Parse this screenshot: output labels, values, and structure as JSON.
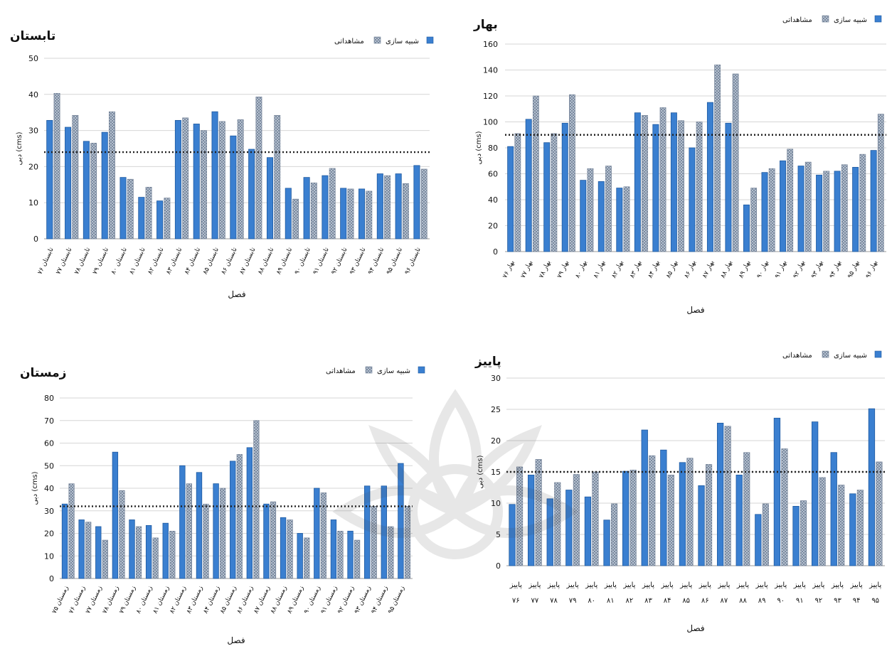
{
  "colors": {
    "simulated": "#3a7fd0",
    "simulated_edge": "#1f5aa0",
    "observed": "#aab8cc",
    "observed_edge": "#6d7c92",
    "grid": "#d6d6d6",
    "mean_line": "#222222",
    "text": "#111111"
  },
  "chart_data": [
    {
      "id": "summer",
      "type": "bar",
      "title": "تابستان",
      "xlabel": "فصل",
      "ylabel": "دبی (cms)",
      "ylim": [
        0,
        50
      ],
      "yticks": [
        0,
        10,
        20,
        30,
        40,
        50
      ],
      "grid": true,
      "legend_position": "top-right",
      "legend": [
        "مشاهداتی",
        "شبیه سازی"
      ],
      "mean_line": 24,
      "categories": [
        "تابستان ۷۶",
        "تابستان ۷۷",
        "تابستان ۷۸",
        "تابستان ۷۹",
        "تابستان ۸۰",
        "تابستان ۸۱",
        "تابستان ۸۲",
        "تابستان ۸۳",
        "تابستان ۸۴",
        "تابستان ۸۵",
        "تابستان ۸۶",
        "تابستان ۸۷",
        "تابستان ۸۸",
        "تابستان ۸۹",
        "تابستان ۹۰",
        "تابستان ۹۱",
        "تابستان ۹۲",
        "تابستان ۹۳",
        "تابستان ۹۴",
        "تابستان ۹۵",
        "تابستان ۹۶"
      ],
      "series": [
        {
          "name": "شبیه سازی",
          "values": [
            32.8,
            30.9,
            27.0,
            29.5,
            17.0,
            11.5,
            10.5,
            32.8,
            31.8,
            35.2,
            28.5,
            24.8,
            22.5,
            14.0,
            17.0,
            17.5,
            14.0,
            13.8,
            18.0,
            18.0,
            20.3
          ]
        },
        {
          "name": "مشاهداتی",
          "values": [
            40.3,
            34.2,
            26.5,
            35.2,
            16.5,
            14.3,
            11.3,
            33.5,
            30.0,
            32.5,
            33.0,
            39.3,
            34.2,
            11.0,
            15.5,
            19.5,
            13.8,
            13.2,
            17.5,
            15.3,
            19.3
          ]
        }
      ]
    },
    {
      "id": "spring",
      "type": "bar",
      "title": "بهار",
      "xlabel": "فصل",
      "ylabel": "دبی (cms)",
      "ylim": [
        0,
        160
      ],
      "yticks": [
        0,
        20,
        40,
        60,
        80,
        100,
        120,
        140,
        160
      ],
      "grid": true,
      "legend_position": "top-right",
      "legend": [
        "مشاهداتی",
        "شبیه سازی"
      ],
      "mean_line": 90,
      "categories": [
        "بهار ۷۶",
        "بهار ۷۷",
        "بهار ۷۸",
        "بهار ۷۹",
        "بهار ۸۰",
        "بهار ۸۱",
        "بهار ۸۲",
        "بهار ۸۳",
        "بهار ۸۴",
        "بهار ۸۵",
        "بهار ۸۶",
        "بهار ۸۷",
        "بهار ۸۸",
        "بهار ۸۹",
        "بهار ۹۰",
        "بهار ۹۱",
        "بهار ۹۲",
        "بهار ۹۳",
        "بهار ۹۴",
        "بهار ۹۵",
        "بهار ۹۶"
      ],
      "series": [
        {
          "name": "شبیه سازی",
          "values": [
            81,
            102,
            84,
            99,
            55,
            54,
            49,
            107,
            98,
            107,
            80,
            115,
            99,
            36,
            61,
            70,
            66,
            59,
            62,
            65,
            78
          ]
        },
        {
          "name": "مشاهداتی",
          "values": [
            91,
            120,
            91,
            121,
            64,
            66,
            50,
            105,
            111,
            101,
            100,
            144,
            137,
            49,
            64,
            79,
            69,
            62,
            67,
            75,
            106
          ]
        }
      ]
    },
    {
      "id": "winter",
      "type": "bar",
      "title": "زمستان",
      "xlabel": "فصل",
      "ylabel": "دبی (cms)",
      "ylim": [
        0,
        80
      ],
      "yticks": [
        0,
        10,
        20,
        30,
        40,
        50,
        60,
        70,
        80
      ],
      "grid": true,
      "legend_position": "top-right",
      "legend": [
        "مشاهداتی",
        "شبیه سازی"
      ],
      "mean_line": 32,
      "categories": [
        "زمستان ۷۵",
        "زمستان ۷۶",
        "زمستان ۷۷",
        "زمستان ۷۸",
        "زمستان ۷۹",
        "زمستان ۸۰",
        "زمستان ۸۱",
        "زمستان ۸۲",
        "زمستان ۸۳",
        "زمستان ۸۴",
        "زمستان ۸۵",
        "زمستان ۸۶",
        "زمستان ۸۷",
        "زمستان ۸۸",
        "زمستان ۸۹",
        "زمستان ۹۰",
        "زمستان ۹۱",
        "زمستان ۹۲",
        "زمستان ۹۳",
        "زمستان ۹۴",
        "زمستان ۹۵"
      ],
      "series": [
        {
          "name": "شبیه سازی",
          "values": [
            33,
            26,
            23,
            56,
            26,
            23.5,
            24.5,
            50,
            47,
            42,
            52,
            58,
            33,
            27,
            20,
            40,
            26,
            21,
            41,
            41,
            51
          ]
        },
        {
          "name": "مشاهداتی",
          "values": [
            42,
            25,
            17,
            39,
            23,
            18,
            21,
            42,
            33,
            40,
            55,
            70,
            34,
            26,
            18,
            38,
            21,
            17,
            32,
            23,
            32
          ]
        }
      ]
    },
    {
      "id": "autumn",
      "type": "bar",
      "title": "پاییز",
      "xlabel": "فصل",
      "ylabel": "دبی (cms)",
      "ylim": [
        0,
        30
      ],
      "yticks": [
        0,
        5,
        10,
        15,
        20,
        25,
        30
      ],
      "grid": true,
      "legend_position": "top-right",
      "legend": [
        "مشاهداتی",
        "شبیه سازی"
      ],
      "mean_line": 15,
      "categories": [
        "پاییز ۷۶",
        "پاییز ۷۷",
        "پاییز ۷۸",
        "پاییز ۷۹",
        "پاییز ۸۰",
        "پاییز ۸۱",
        "پاییز ۸۲",
        "پاییز ۸۳",
        "پاییز ۸۴",
        "پاییز ۸۵",
        "پاییز ۸۶",
        "پاییز ۸۷",
        "پاییز ۸۸",
        "پاییز ۸۹",
        "پاییز ۹۰",
        "پاییز ۹۱",
        "پاییز ۹۲",
        "پاییز ۹۳",
        "پاییز ۹۴",
        "پاییز ۹۵"
      ],
      "series": [
        {
          "name": "شبیه سازی",
          "values": [
            9.8,
            14.5,
            10.7,
            12.1,
            11.0,
            7.3,
            15.1,
            21.7,
            18.5,
            16.5,
            12.8,
            22.8,
            14.5,
            8.2,
            23.6,
            9.5,
            23.0,
            18.1,
            11.5,
            25.1
          ]
        },
        {
          "name": "مشاهداتی",
          "values": [
            15.8,
            17.0,
            13.3,
            14.6,
            15.0,
            9.9,
            15.3,
            17.6,
            14.5,
            17.2,
            16.2,
            22.3,
            18.1,
            9.9,
            18.7,
            10.4,
            14.1,
            12.9,
            12.1,
            16.6
          ]
        }
      ]
    }
  ]
}
